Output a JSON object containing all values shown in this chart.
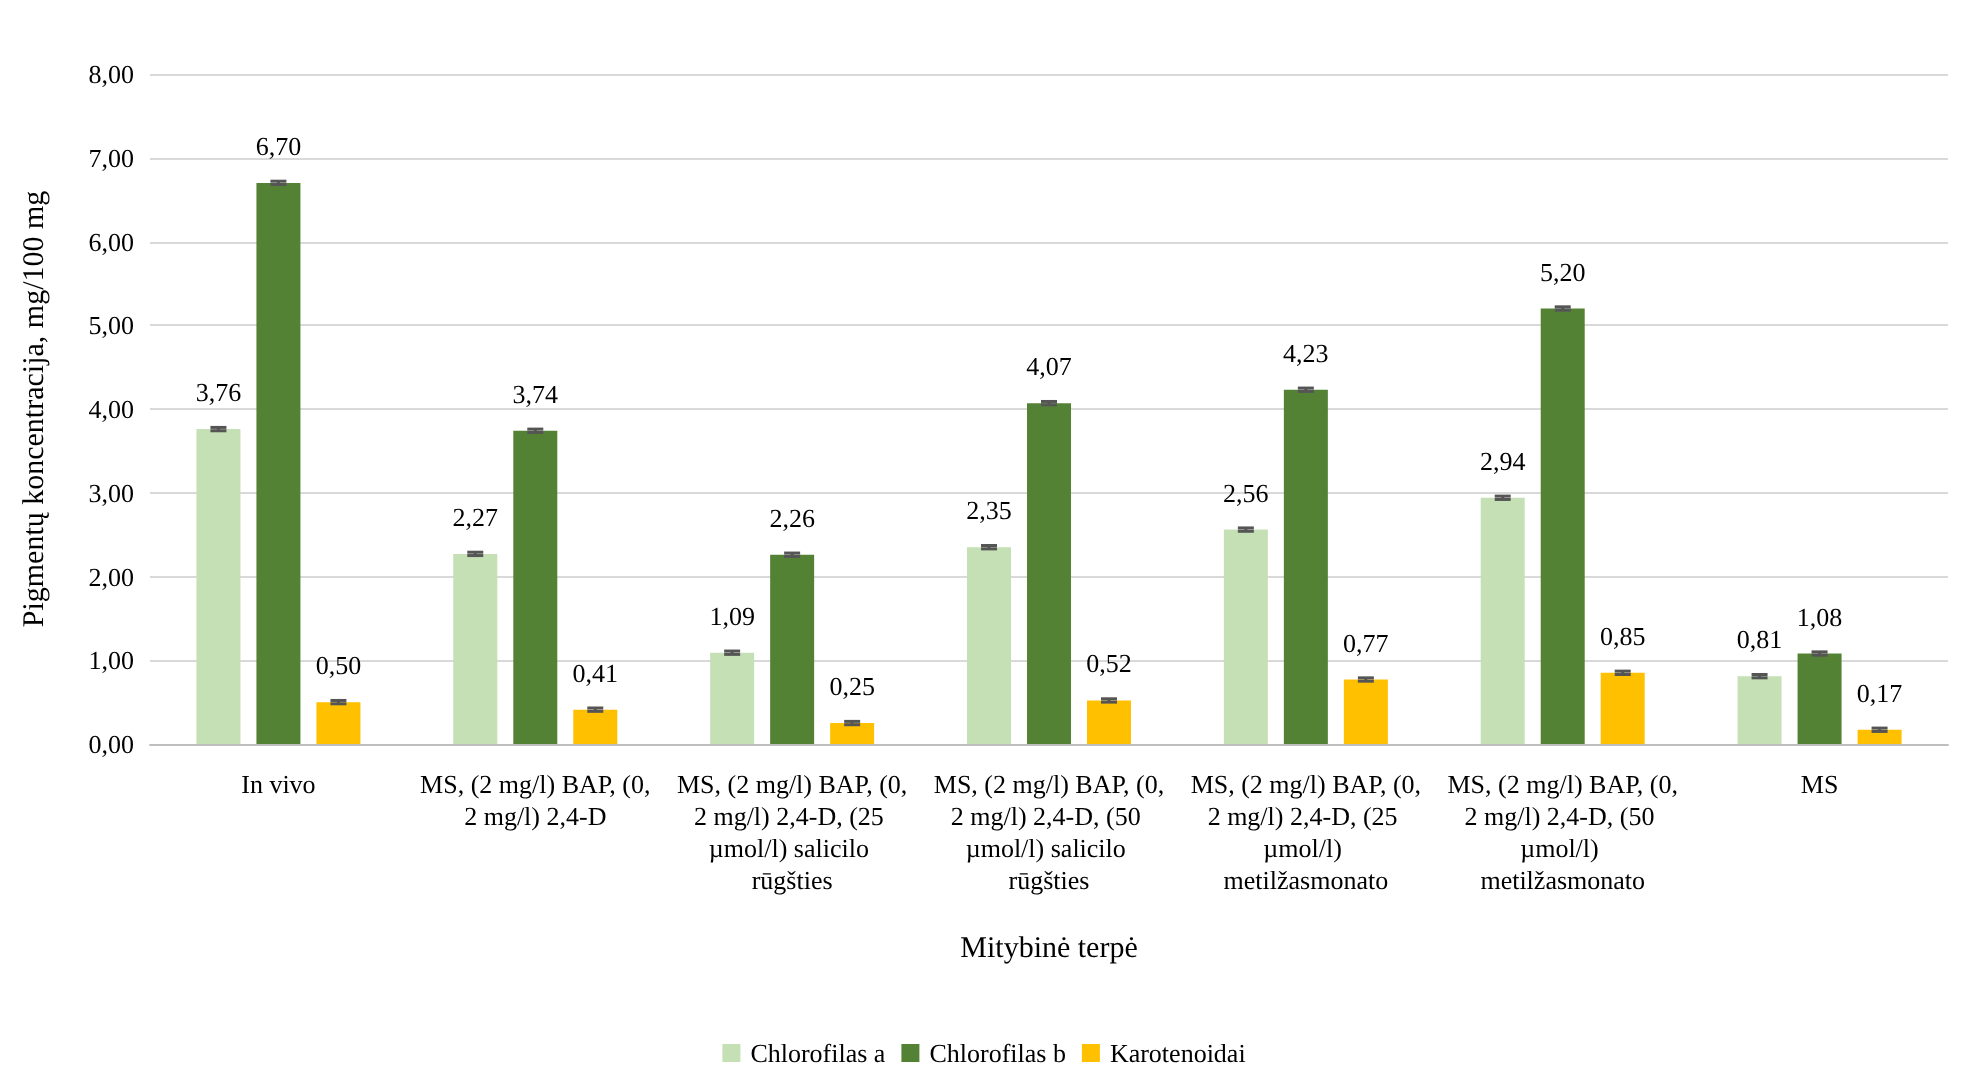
{
  "chart_data": {
    "type": "bar",
    "xlabel": "Mitybinė terpė",
    "ylabel": "Pigmentų koncentracija, mg/100 mg",
    "categories": [
      "In vivo",
      "MS, (2 mg/l) BAP, (0,2 mg/l) 2,4-D",
      "MS, (2 mg/l) BAP, (0,2 mg/l) 2,4-D, (25 µmol/l) salicilo rūgšties",
      "MS, (2 mg/l) BAP, (0,2 mg/l) 2,4-D, (50 µmol/l) salicilo rūgšties",
      "MS, (2 mg/l) BAP, (0,2 mg/l) 2,4-D, (25 µmol/l) metilžasmonato",
      "MS, (2 mg/l) BAP, (0,2 mg/l) 2,4-D, (50 µmol/l) metilžasmonato",
      "MS"
    ],
    "series": [
      {
        "name": "Chlorofilas a",
        "color": "#c5e0b4",
        "values": [
          3.76,
          2.27,
          1.09,
          2.35,
          2.56,
          2.94,
          0.81
        ],
        "value_labels": [
          "3,76",
          "2,27",
          "1,09",
          "2,35",
          "2,56",
          "2,94",
          "0,81"
        ],
        "errors": [
          0.02,
          0.02,
          0.02,
          0.02,
          0.02,
          0.02,
          0.02
        ]
      },
      {
        "name": "Chlorofilas b",
        "color": "#548235",
        "values": [
          6.7,
          3.74,
          2.26,
          4.07,
          4.23,
          5.2,
          1.08
        ],
        "value_labels": [
          "6,70",
          "3,74",
          "2,26",
          "4,07",
          "4,23",
          "5,20",
          "1,08"
        ],
        "errors": [
          0.02,
          0.02,
          0.02,
          0.02,
          0.02,
          0.02,
          0.02
        ]
      },
      {
        "name": "Karotenoidai",
        "color": "#ffc000",
        "values": [
          0.5,
          0.41,
          0.25,
          0.52,
          0.77,
          0.85,
          0.17
        ],
        "value_labels": [
          "0,50",
          "0,41",
          "0,25",
          "0,52",
          "0,77",
          "0,85",
          "0,17"
        ],
        "errors": [
          0.02,
          0.02,
          0.02,
          0.02,
          0.02,
          0.02,
          0.02
        ]
      }
    ],
    "ylim": [
      0,
      8
    ],
    "yticks": [
      {
        "value": 0,
        "label": "0,00"
      },
      {
        "value": 1,
        "label": "1,00"
      },
      {
        "value": 2,
        "label": "2,00"
      },
      {
        "value": 3,
        "label": "3,00"
      },
      {
        "value": 4,
        "label": "4,00"
      },
      {
        "value": 5,
        "label": "5,00"
      },
      {
        "value": 6,
        "label": "6,00"
      },
      {
        "value": 7,
        "label": "7,00"
      },
      {
        "value": 8,
        "label": "8,00"
      }
    ],
    "grid": "y",
    "legend": "bottom"
  }
}
